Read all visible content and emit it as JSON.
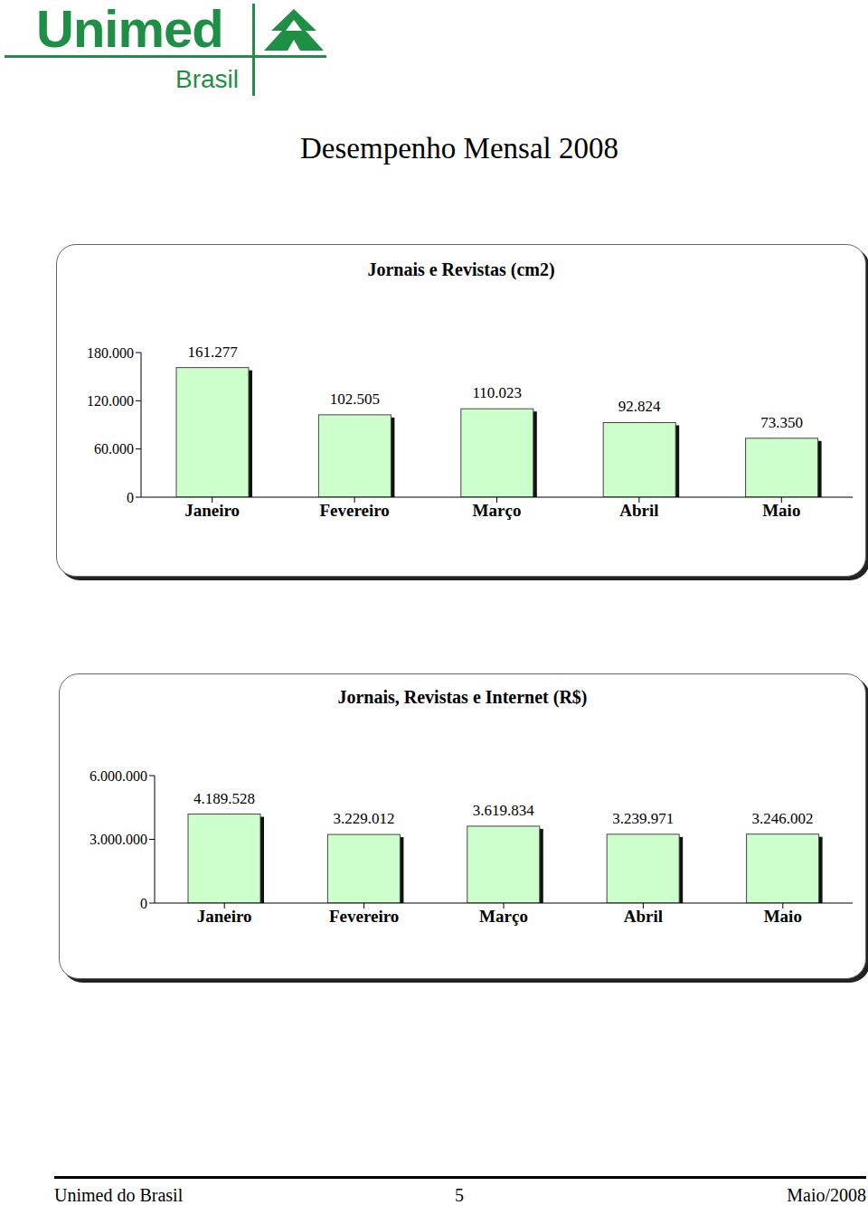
{
  "header": {
    "logo": "Unimed",
    "logo_subtitle": "Brasil",
    "title": "Desempenho Mensal 2008"
  },
  "chart_data": [
    {
      "type": "bar",
      "title": "Jornais e Revistas (cm2)",
      "categories": [
        "Janeiro",
        "Fevereiro",
        "Março",
        "Abril",
        "Maio"
      ],
      "values": [
        161277,
        102505,
        110023,
        92824,
        73350
      ],
      "value_labels": [
        "161.277",
        "102.505",
        "110.023",
        "92.824",
        "73.350"
      ],
      "color": "#ccffcc",
      "ylim": [
        0,
        180000
      ],
      "yticks": [
        0,
        {
          "value": 60000,
          "label": "60.000"
        },
        {
          "value": 120000,
          "label": "120.000"
        },
        {
          "value": 180000,
          "label": "180.000"
        }
      ],
      "data_labels": true,
      "grid": false
    },
    {
      "type": "bar",
      "title": "Jornais, Revistas e Internet (R$)",
      "categories": [
        "Janeiro",
        "Fevereiro",
        "Março",
        "Abril",
        "Maio"
      ],
      "values": [
        4189528,
        3229012,
        3619834,
        3239971,
        3246002
      ],
      "value_labels": [
        "4.189.528",
        "3.229.012",
        "3.619.834",
        "3.239.971",
        "3.246.002"
      ],
      "color": "#ccffcc",
      "ylim": [
        0,
        6000000
      ],
      "yticks": [
        0,
        {
          "value": 3000000,
          "label": "3.000.000"
        },
        {
          "value": 6000000,
          "label": "6.000.000"
        }
      ],
      "data_labels": true,
      "grid": false
    }
  ],
  "footer": {
    "left": "Unimed do Brasil",
    "page": 5,
    "right": "Maio/2008"
  }
}
